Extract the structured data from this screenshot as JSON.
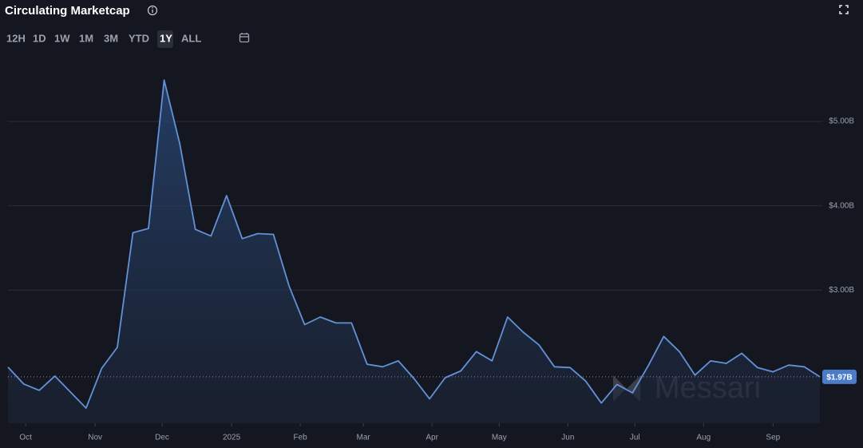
{
  "chart_data": {
    "type": "area",
    "title": "Circulating Marketcap",
    "ranges": [
      "12H",
      "1D",
      "1W",
      "1M",
      "3M",
      "YTD",
      "1Y",
      "ALL"
    ],
    "active_range": "1Y",
    "watermark": "Messari",
    "color": "#6391d8",
    "grid": true,
    "values": [
      2.085,
      1.886,
      1.81,
      1.98,
      1.79,
      1.6,
      2.07,
      2.32,
      3.68,
      3.73,
      5.49,
      4.74,
      3.72,
      3.64,
      4.12,
      3.61,
      3.67,
      3.66,
      3.05,
      2.59,
      2.68,
      2.61,
      2.61,
      2.12,
      2.09,
      2.16,
      1.95,
      1.71,
      1.96,
      2.04,
      2.27,
      2.16,
      2.68,
      2.5,
      2.35,
      2.09,
      2.08,
      1.92,
      1.66,
      1.88,
      1.78,
      2.1,
      2.45,
      2.27,
      1.99,
      2.16,
      2.13,
      2.25,
      2.08,
      2.03,
      2.11,
      2.09,
      1.97
    ],
    "xlim": [
      0,
      52
    ],
    "xticks": [
      {
        "value": 1.13,
        "label": "Oct"
      },
      {
        "value": 5.58,
        "label": "Nov"
      },
      {
        "value": 9.87,
        "label": "Dec"
      },
      {
        "value": 14.32,
        "label": "2025"
      },
      {
        "value": 18.72,
        "label": "Feb"
      },
      {
        "value": 22.76,
        "label": "Mar"
      },
      {
        "value": 27.16,
        "label": "Apr"
      },
      {
        "value": 31.46,
        "label": "May"
      },
      {
        "value": 35.86,
        "label": "Jun"
      },
      {
        "value": 40.15,
        "label": "Jul"
      },
      {
        "value": 44.55,
        "label": "Aug"
      },
      {
        "value": 49.0,
        "label": "Sep"
      }
    ],
    "ylim": [
      1.42,
      5.73
    ],
    "yticks": [
      {
        "value": 3,
        "label": "$3.00B"
      },
      {
        "value": 4,
        "label": "$4.00B"
      },
      {
        "value": 5,
        "label": "$5.00B"
      }
    ],
    "current_value": {
      "value": 1.97,
      "label": "$1.97B"
    }
  }
}
